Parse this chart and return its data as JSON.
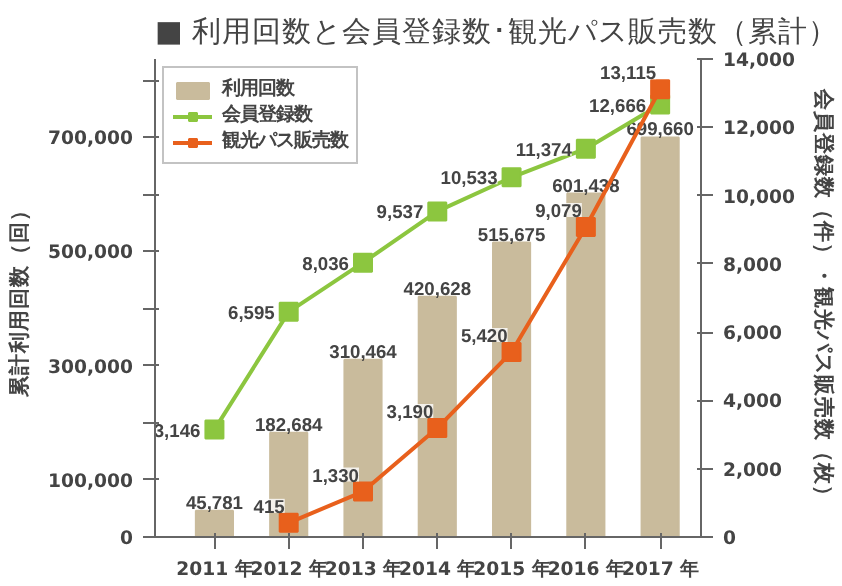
{
  "chart_data": {
    "type": "bar",
    "title": "■ 利用回数と会員登録数･観光パス販売数（累計）",
    "categories": [
      "2011 年",
      "2012 年",
      "2013 年",
      "2014 年",
      "2015 年",
      "2016 年",
      "2017 年"
    ],
    "series": [
      {
        "name": "利用回数",
        "color": "#c9bb9c",
        "values": [
          45781,
          182684,
          310464,
          420628,
          515675,
          601438,
          699660
        ],
        "value_labels": [
          "45,781",
          "182,684",
          "310,464",
          "420,628",
          "515,675",
          "601,438",
          "699,660"
        ]
      },
      {
        "name": "会員登録数",
        "type": "line",
        "axis": "y2",
        "color": "#8cc63f",
        "marker": "square",
        "values": [
          3146,
          6595,
          8036,
          9537,
          10533,
          11374,
          12666
        ],
        "value_labels": [
          "3,146",
          "6,595",
          "8,036",
          "9,537",
          "10,533",
          "11,374",
          "12,666"
        ]
      },
      {
        "name": "観光パス販売数",
        "type": "line",
        "axis": "y2",
        "color": "#e8601c",
        "marker": "square",
        "values": [
          null,
          415,
          1330,
          3190,
          5420,
          9079,
          13115
        ],
        "value_labels": [
          null,
          "415",
          "1,330",
          "3,190",
          "5,420",
          "9,079",
          "13,115"
        ]
      }
    ],
    "ylabel": "累計利用回数（回）",
    "y2label": "会員登録数（件）・観光パス販売数（枚）",
    "ylim": [
      0,
      837000
    ],
    "yticks": [
      0,
      {
        "value": 100000,
        "label": "100,000"
      },
      {
        "value": 200000,
        "label": null
      },
      {
        "value": 300000,
        "label": "300,000"
      },
      {
        "value": 400000,
        "label": null
      },
      {
        "value": 500000,
        "label": "500,000"
      },
      {
        "value": 600000,
        "label": null
      },
      {
        "value": 700000,
        "label": "700,000"
      },
      {
        "value": 800000,
        "label": null
      }
    ],
    "y2lim": [
      0,
      14000
    ],
    "y2ticks": [
      0,
      {
        "value": 2000,
        "label": "2,000"
      },
      {
        "value": 4000,
        "label": "4,000"
      },
      {
        "value": 6000,
        "label": "6,000"
      },
      {
        "value": 8000,
        "label": "8,000"
      },
      {
        "value": 10000,
        "label": "10,000"
      },
      {
        "value": 12000,
        "label": "12,000"
      },
      {
        "value": 14000,
        "label": "14,000"
      }
    ],
    "grid": false,
    "legend": "top left"
  }
}
